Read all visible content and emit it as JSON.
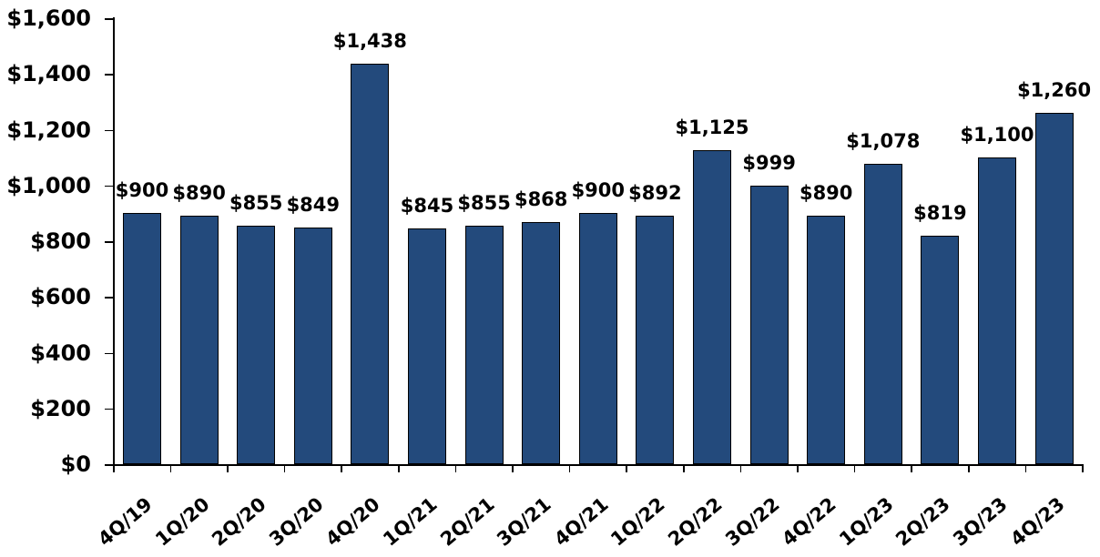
{
  "chart_data": {
    "type": "bar",
    "title": "",
    "xlabel": "",
    "ylabel": "",
    "ylim": [
      0,
      1600
    ],
    "yticks": [
      "$0",
      "$200",
      "$400",
      "$600",
      "$800",
      "$1,000",
      "$1,200",
      "$1,400",
      "$1,600"
    ],
    "ytick_values": [
      0,
      200,
      400,
      600,
      800,
      1000,
      1200,
      1400,
      1600
    ],
    "grid": false,
    "legend": null,
    "bar_color": "#234a7c",
    "categories": [
      "4Q/19",
      "1Q/20",
      "2Q/20",
      "3Q/20",
      "4Q/20",
      "1Q/21",
      "2Q/21",
      "3Q/21",
      "4Q/21",
      "1Q/22",
      "2Q/22",
      "3Q/22",
      "4Q/22",
      "1Q/23",
      "2Q/23",
      "3Q/23",
      "4Q/23"
    ],
    "values": [
      900,
      890,
      855,
      849,
      1438,
      845,
      855,
      868,
      900,
      892,
      1125,
      999,
      890,
      1078,
      819,
      1100,
      1260
    ],
    "data_labels": [
      "$900",
      "$890",
      "$855",
      "$849",
      "$1,438",
      "$845",
      "$855",
      "$868",
      "$900",
      "$892",
      "$1,125",
      "$999",
      "$890",
      "$1,078",
      "$819",
      "$1,100",
      "$1,260"
    ]
  }
}
